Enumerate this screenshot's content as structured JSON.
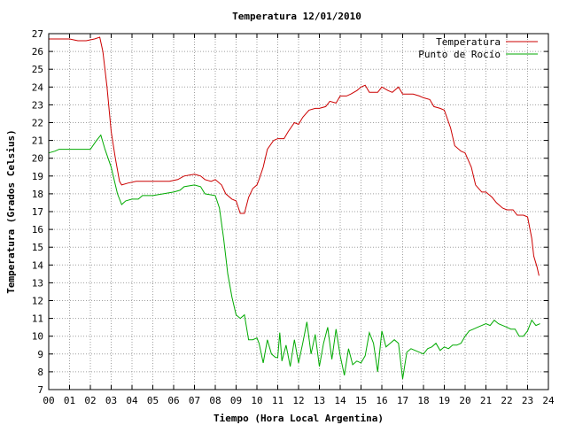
{
  "chart_data": {
    "type": "line",
    "title": "Temperatura 12/01/2010",
    "xlabel": "Tiempo (Hora Local Argentina)",
    "ylabel": "Temperatura (Grados Celsius)",
    "xlim": [
      0,
      24
    ],
    "ylim": [
      7,
      27
    ],
    "grid": true,
    "legend_position": "top-right",
    "x_ticks": [
      0,
      1,
      2,
      3,
      4,
      5,
      6,
      7,
      8,
      9,
      10,
      11,
      12,
      13,
      14,
      15,
      16,
      17,
      18,
      19,
      20,
      21,
      22,
      23,
      24
    ],
    "x_tick_labels": [
      "00",
      "01",
      "02",
      "03",
      "04",
      "05",
      "06",
      "07",
      "08",
      "09",
      "10",
      "11",
      "12",
      "13",
      "14",
      "15",
      "16",
      "17",
      "18",
      "19",
      "20",
      "21",
      "22",
      "23",
      "24"
    ],
    "y_ticks": [
      7,
      8,
      9,
      10,
      11,
      12,
      13,
      14,
      15,
      16,
      17,
      18,
      19,
      20,
      21,
      22,
      23,
      24,
      25,
      26,
      27
    ],
    "y_tick_labels": [
      "7",
      "8",
      "9",
      "10",
      "11",
      "12",
      "13",
      "14",
      "15",
      "16",
      "17",
      "18",
      "19",
      "20",
      "21",
      "22",
      "23",
      "24",
      "25",
      "26",
      "27"
    ],
    "series": [
      {
        "name": "Temperatura",
        "color": "#cc0000",
        "x": [
          0,
          0.5,
          1,
          1.4,
          1.8,
          2.2,
          2.45,
          2.6,
          2.8,
          3.0,
          3.2,
          3.4,
          3.5,
          3.8,
          4.2,
          5.0,
          5.8,
          6.2,
          6.5,
          7.0,
          7.3,
          7.5,
          7.8,
          8.0,
          8.3,
          8.5,
          8.8,
          9.0,
          9.2,
          9.4,
          9.6,
          9.8,
          10.0,
          10.1,
          10.3,
          10.5,
          10.8,
          11.0,
          11.3,
          11.5,
          11.8,
          12.0,
          12.2,
          12.5,
          12.8,
          13.0,
          13.3,
          13.5,
          13.8,
          14.0,
          14.3,
          14.5,
          14.8,
          15.0,
          15.2,
          15.4,
          15.5,
          15.8,
          16.0,
          16.3,
          16.5,
          16.8,
          17.0,
          17.3,
          17.5,
          17.8,
          18.0,
          18.3,
          18.5,
          18.8,
          19.0,
          19.3,
          19.5,
          19.8,
          20.0,
          20.3,
          20.5,
          20.8,
          21.0,
          21.3,
          21.5,
          21.8,
          22.0,
          22.3,
          22.5,
          22.8,
          23.0,
          23.2,
          23.3,
          23.45,
          23.55
        ],
        "y": [
          26.7,
          26.7,
          26.7,
          26.6,
          26.6,
          26.7,
          26.8,
          26.0,
          24.0,
          21.5,
          20.0,
          18.7,
          18.5,
          18.6,
          18.7,
          18.7,
          18.7,
          18.8,
          19.0,
          19.1,
          19.0,
          18.8,
          18.7,
          18.8,
          18.5,
          18.0,
          17.7,
          17.6,
          16.9,
          16.9,
          17.8,
          18.3,
          18.5,
          18.8,
          19.5,
          20.5,
          21.0,
          21.1,
          21.1,
          21.5,
          22.0,
          21.9,
          22.3,
          22.7,
          22.8,
          22.8,
          22.9,
          23.2,
          23.1,
          23.5,
          23.5,
          23.6,
          23.8,
          24.0,
          24.1,
          23.7,
          23.7,
          23.7,
          24.0,
          23.8,
          23.7,
          24.0,
          23.6,
          23.6,
          23.6,
          23.5,
          23.4,
          23.3,
          22.9,
          22.8,
          22.7,
          21.7,
          20.7,
          20.4,
          20.3,
          19.5,
          18.5,
          18.1,
          18.1,
          17.8,
          17.5,
          17.2,
          17.1,
          17.1,
          16.8,
          16.8,
          16.7,
          15.5,
          14.5,
          13.9,
          13.4
        ]
      },
      {
        "name": "Punto de Rocío",
        "color": "#00aa00",
        "x": [
          0,
          0.3,
          0.5,
          1.0,
          1.5,
          2.0,
          2.3,
          2.5,
          2.7,
          3.0,
          3.3,
          3.5,
          3.7,
          4.0,
          4.3,
          4.5,
          5.0,
          5.5,
          6.0,
          6.3,
          6.5,
          7.0,
          7.3,
          7.5,
          8.0,
          8.2,
          8.4,
          8.6,
          8.8,
          9.0,
          9.2,
          9.4,
          9.6,
          9.8,
          10.0,
          10.1,
          10.3,
          10.5,
          10.7,
          10.9,
          11.0,
          11.1,
          11.2,
          11.4,
          11.6,
          11.8,
          12.0,
          12.2,
          12.4,
          12.6,
          12.8,
          13.0,
          13.2,
          13.4,
          13.6,
          13.8,
          14.0,
          14.2,
          14.4,
          14.6,
          14.8,
          15.0,
          15.2,
          15.4,
          15.6,
          15.8,
          16.0,
          16.2,
          16.4,
          16.6,
          16.8,
          17.0,
          17.2,
          17.4,
          17.6,
          17.8,
          18.0,
          18.2,
          18.4,
          18.6,
          18.8,
          19.0,
          19.2,
          19.4,
          19.6,
          19.8,
          20.0,
          20.2,
          20.4,
          20.6,
          20.8,
          21.0,
          21.2,
          21.4,
          21.6,
          21.8,
          22.0,
          22.2,
          22.4,
          22.6,
          22.8,
          23.0,
          23.2,
          23.4,
          23.6
        ],
        "y": [
          20.3,
          20.4,
          20.5,
          20.5,
          20.5,
          20.5,
          21.0,
          21.3,
          20.5,
          19.5,
          18.0,
          17.4,
          17.6,
          17.7,
          17.7,
          17.9,
          17.9,
          18.0,
          18.1,
          18.2,
          18.4,
          18.5,
          18.4,
          18.0,
          17.9,
          17.2,
          15.5,
          13.5,
          12.2,
          11.2,
          11.0,
          11.2,
          9.8,
          9.8,
          9.9,
          9.6,
          8.5,
          9.8,
          9.0,
          8.8,
          8.8,
          10.2,
          8.6,
          9.5,
          8.3,
          9.8,
          8.5,
          9.6,
          10.8,
          9.0,
          10.1,
          8.3,
          9.6,
          10.5,
          8.7,
          10.4,
          8.9,
          7.8,
          9.3,
          8.4,
          8.6,
          8.5,
          8.9,
          10.2,
          9.6,
          8.0,
          10.3,
          9.4,
          9.6,
          9.8,
          9.6,
          7.6,
          9.1,
          9.3,
          9.2,
          9.1,
          9.0,
          9.3,
          9.4,
          9.6,
          9.2,
          9.4,
          9.3,
          9.5,
          9.5,
          9.6,
          10.0,
          10.3,
          10.4,
          10.5,
          10.6,
          10.7,
          10.6,
          10.9,
          10.7,
          10.6,
          10.5,
          10.4,
          10.4,
          10.0,
          10.0,
          10.3,
          10.9,
          10.6,
          10.7
        ]
      }
    ]
  }
}
